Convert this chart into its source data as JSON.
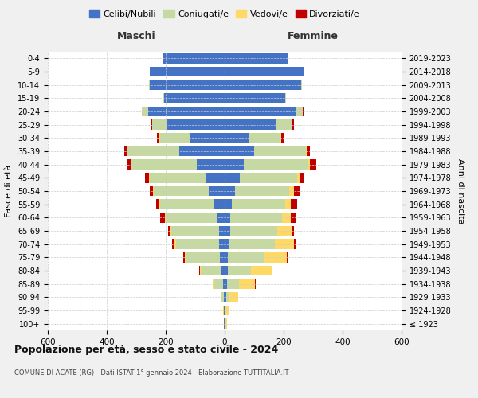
{
  "age_groups": [
    "100+",
    "95-99",
    "90-94",
    "85-89",
    "80-84",
    "75-79",
    "70-74",
    "65-69",
    "60-64",
    "55-59",
    "50-54",
    "45-49",
    "40-44",
    "35-39",
    "30-34",
    "25-29",
    "20-24",
    "15-19",
    "10-14",
    "5-9",
    "0-4"
  ],
  "birth_years": [
    "≤ 1923",
    "1924-1928",
    "1929-1933",
    "1934-1938",
    "1939-1943",
    "1944-1948",
    "1949-1953",
    "1954-1958",
    "1959-1963",
    "1964-1968",
    "1969-1973",
    "1974-1978",
    "1979-1983",
    "1984-1988",
    "1989-1993",
    "1994-1998",
    "1999-2003",
    "2004-2008",
    "2009-2013",
    "2014-2018",
    "2019-2023"
  ],
  "male": {
    "celibi": [
      2,
      2,
      3,
      5,
      10,
      15,
      20,
      20,
      25,
      35,
      55,
      65,
      95,
      155,
      115,
      195,
      260,
      205,
      255,
      255,
      210
    ],
    "coniugati": [
      1,
      2,
      8,
      30,
      70,
      115,
      145,
      160,
      175,
      185,
      185,
      190,
      220,
      175,
      105,
      50,
      20,
      2,
      1,
      0,
      0
    ],
    "vedovi": [
      0,
      1,
      3,
      5,
      5,
      5,
      5,
      5,
      3,
      3,
      3,
      2,
      2,
      1,
      1,
      1,
      1,
      0,
      0,
      0,
      0
    ],
    "divorziati": [
      0,
      0,
      0,
      0,
      2,
      5,
      8,
      8,
      15,
      10,
      12,
      12,
      15,
      10,
      8,
      3,
      1,
      0,
      0,
      0,
      0
    ]
  },
  "female": {
    "nubili": [
      2,
      2,
      5,
      8,
      10,
      12,
      15,
      18,
      20,
      25,
      35,
      50,
      65,
      100,
      85,
      175,
      240,
      205,
      260,
      270,
      215
    ],
    "coniugate": [
      1,
      2,
      10,
      40,
      80,
      120,
      155,
      160,
      175,
      180,
      185,
      195,
      220,
      175,
      105,
      55,
      25,
      3,
      2,
      0,
      0
    ],
    "vedove": [
      5,
      10,
      30,
      55,
      70,
      80,
      65,
      50,
      30,
      20,
      15,
      8,
      5,
      3,
      2,
      1,
      1,
      0,
      0,
      0,
      0
    ],
    "divorziate": [
      0,
      0,
      1,
      2,
      3,
      5,
      8,
      8,
      18,
      20,
      18,
      18,
      20,
      12,
      10,
      4,
      2,
      0,
      0,
      0,
      0
    ]
  },
  "colors": {
    "celibi": "#4472C4",
    "coniugati": "#C5D9A0",
    "vedovi": "#FFD966",
    "divorziati": "#C00000"
  },
  "xlim": 600,
  "title": "Popolazione per età, sesso e stato civile - 2024",
  "subtitle": "COMUNE DI ACATE (RG) - Dati ISTAT 1° gennaio 2024 - Elaborazione TUTTITALIA.IT",
  "xlabel_left": "Maschi",
  "xlabel_right": "Femmine",
  "ylabel_left": "Fasce di età",
  "ylabel_right": "Anni di nascita",
  "legend_labels": [
    "Celibi/Nubili",
    "Coniugati/e",
    "Vedovi/e",
    "Divorziati/e"
  ],
  "bg_color": "#f0f0f0",
  "plot_bg_color": "#ffffff"
}
